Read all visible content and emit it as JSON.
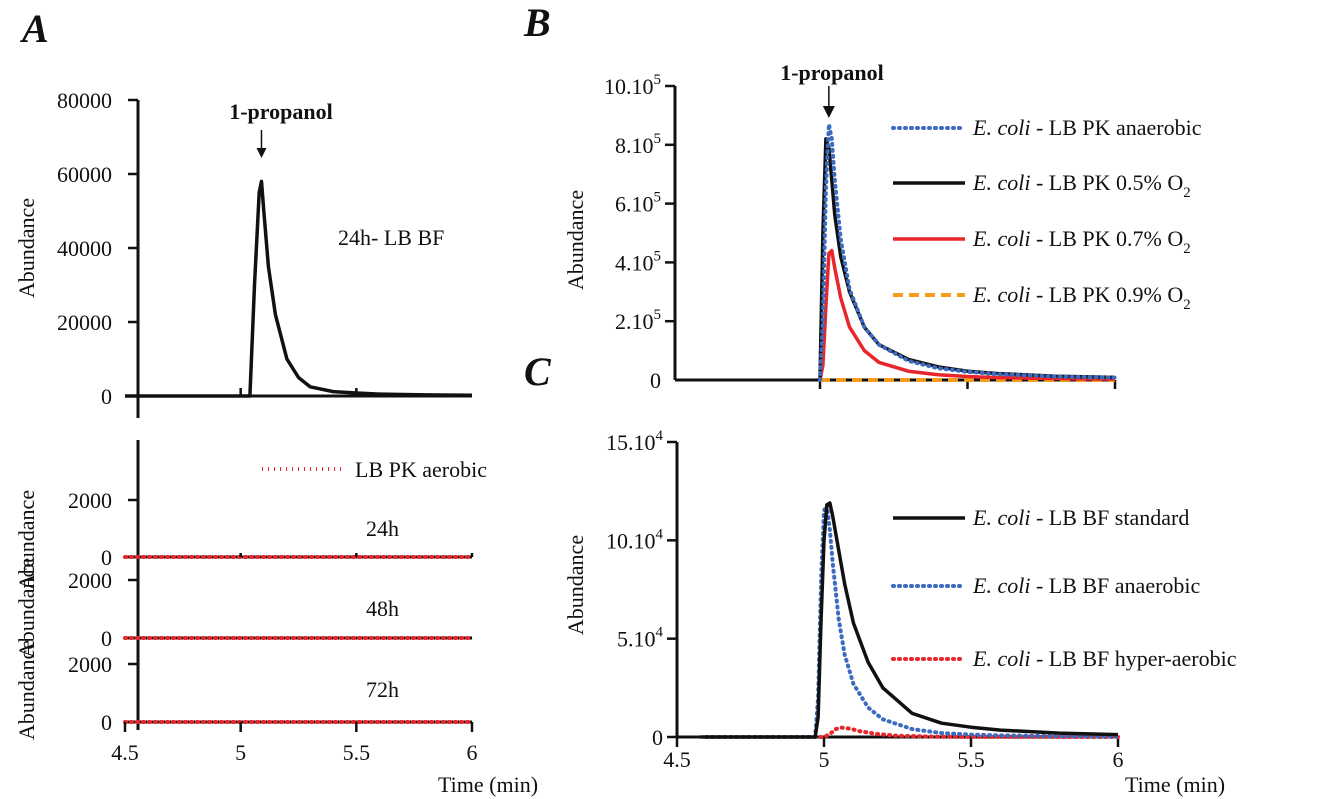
{
  "chart_data": [
    {
      "panel": "A",
      "type": "line",
      "ylabel": "Abundance",
      "xlim": [
        4.5,
        6.0
      ],
      "ylim": [
        0,
        80000
      ],
      "y_ticks": [
        "80000",
        "60000",
        "40000",
        "20000",
        "0"
      ],
      "y_tick_values": [
        80000,
        60000,
        40000,
        20000,
        0
      ],
      "annotation": {
        "text": "1-propanol",
        "x": 5.09
      },
      "label": "24h- LB  BF",
      "colors": {
        "line": "#111111"
      },
      "series": [
        {
          "style": "solid",
          "x": [
            4.5,
            5.0,
            5.04,
            5.06,
            5.08,
            5.09,
            5.1,
            5.12,
            5.15,
            5.2,
            5.25,
            5.3,
            5.4,
            5.5,
            5.6,
            5.8,
            6.0
          ],
          "y": [
            0,
            0,
            0,
            30000,
            55000,
            58000,
            50000,
            35000,
            22000,
            10000,
            5000,
            2500,
            1200,
            800,
            500,
            300,
            200
          ]
        }
      ]
    },
    {
      "panel": "A-lower",
      "type": "line",
      "ylabel": "Abundance",
      "xlabel": "Time (min)",
      "xlim": [
        4.5,
        6.0
      ],
      "x_ticks": [
        "4.5",
        "5",
        "5.5",
        "6"
      ],
      "x_tick_values": [
        4.5,
        5.0,
        5.5,
        6.0
      ],
      "legend": "LB  PK aerobic",
      "colors": {
        "line": "#e8262b",
        "axis": "#111111"
      },
      "strips": [
        {
          "label": "24h",
          "y_ticks": [
            "2000",
            "0"
          ],
          "y_tick_values": [
            2000,
            0
          ],
          "ylim": [
            0,
            3500
          ],
          "series": [
            {
              "x": [
                4.5,
                6.0
              ],
              "y": [
                0,
                0
              ]
            }
          ]
        },
        {
          "label": "48h",
          "y_ticks": [
            "2000",
            "0"
          ],
          "y_tick_values": [
            2000,
            0
          ],
          "ylim": [
            0,
            2300
          ],
          "series": [
            {
              "x": [
                4.5,
                6.0
              ],
              "y": [
                0,
                0
              ]
            }
          ]
        },
        {
          "label": "72h",
          "y_ticks": [
            "2000",
            "0"
          ],
          "y_tick_values": [
            2000,
            0
          ],
          "ylim": [
            0,
            2300
          ],
          "series": [
            {
              "x": [
                4.5,
                6.0
              ],
              "y": [
                0,
                0
              ]
            }
          ]
        }
      ]
    },
    {
      "panel": "B",
      "type": "line",
      "ylabel": "Abundance",
      "xlim": [
        5.0,
        6.0
      ],
      "ylim": [
        0,
        1000000
      ],
      "y_ticks": [
        {
          "m": "10.10",
          "e": "5",
          "v": 1000000
        },
        {
          "m": "8.10",
          "e": "5",
          "v": 800000
        },
        {
          "m": "6.10",
          "e": "5",
          "v": 600000
        },
        {
          "m": "4.10",
          "e": "5",
          "v": 400000
        },
        {
          "m": "2.10",
          "e": "5",
          "v": 200000
        },
        {
          "m": "0",
          "e": "",
          "v": 0
        }
      ],
      "x_tick_values": [
        5.0,
        5.5,
        6.0
      ],
      "annotation": {
        "text": "1-propanol",
        "x": 5.03
      },
      "series": [
        {
          "name_italic": "E. coli",
          "name_rest": " - LB  PK anaerobic",
          "sub": "",
          "color": "#3d6bbf",
          "style": "dotted",
          "x": [
            5.0,
            5.01,
            5.02,
            5.03,
            5.04,
            5.05,
            5.07,
            5.1,
            5.15,
            5.2,
            5.3,
            5.4,
            5.5,
            5.6,
            5.8,
            6.0
          ],
          "y": [
            0,
            200000,
            650000,
            870000,
            820000,
            680000,
            480000,
            310000,
            180000,
            120000,
            65000,
            40000,
            28000,
            20000,
            12000,
            8000
          ]
        },
        {
          "name_italic": "E. coli",
          "name_rest": " - LB  PK 0.5% O",
          "sub": "2",
          "color": "#111111",
          "style": "solid",
          "x": [
            5.0,
            5.01,
            5.02,
            5.03,
            5.04,
            5.05,
            5.07,
            5.1,
            5.15,
            5.2,
            5.3,
            5.4,
            5.5,
            5.6,
            5.8,
            6.0
          ],
          "y": [
            0,
            500000,
            820000,
            790000,
            680000,
            560000,
            420000,
            300000,
            180000,
            120000,
            70000,
            45000,
            30000,
            22000,
            13000,
            9000
          ]
        },
        {
          "name_italic": "E. coli",
          "name_rest": " - LB  PK 0.7% O",
          "sub": "2",
          "color": "#e8262b",
          "style": "solid",
          "x": [
            5.0,
            5.01,
            5.02,
            5.03,
            5.04,
            5.05,
            5.07,
            5.1,
            5.15,
            5.2,
            5.3,
            5.4,
            5.5,
            5.6,
            5.8,
            6.0
          ],
          "y": [
            0,
            50000,
            250000,
            430000,
            440000,
            380000,
            280000,
            180000,
            100000,
            60000,
            30000,
            18000,
            12000,
            8000,
            5000,
            3000
          ]
        },
        {
          "name_italic": "E. coli",
          "name_rest": " - LB  PK 0.9% O",
          "sub": "2",
          "color": "#f39c1d",
          "style": "dashed",
          "x": [
            5.0,
            6.0
          ],
          "y": [
            0,
            0
          ]
        }
      ]
    },
    {
      "panel": "C",
      "type": "line",
      "ylabel": "Abundance",
      "xlabel": "Time (min)",
      "xlim": [
        4.5,
        6.0
      ],
      "ylim": [
        0,
        150000
      ],
      "y_ticks": [
        {
          "m": "15.10",
          "e": "4",
          "v": 150000
        },
        {
          "m": "10.10",
          "e": "4",
          "v": 100000
        },
        {
          "m": "5.10",
          "e": "4",
          "v": 50000
        },
        {
          "m": "0",
          "e": "",
          "v": 0
        }
      ],
      "x_ticks": [
        "4.5",
        "5",
        "5.5",
        "6"
      ],
      "x_tick_values": [
        4.5,
        5.0,
        5.5,
        6.0
      ],
      "series": [
        {
          "name_italic": "E. coli",
          "name_rest": " - LB  BF standard",
          "color": "#111111",
          "style": "solid",
          "x": [
            4.58,
            4.97,
            4.98,
            4.99,
            5.0,
            5.01,
            5.02,
            5.03,
            5.05,
            5.07,
            5.1,
            5.15,
            5.2,
            5.3,
            5.4,
            5.5,
            5.6,
            5.8,
            6.0
          ],
          "y": [
            0,
            0,
            10000,
            60000,
            100000,
            118000,
            119000,
            112000,
            95000,
            78000,
            58000,
            38000,
            25000,
            12000,
            7000,
            5000,
            3500,
            2000,
            1200
          ]
        },
        {
          "name_italic": "E. coli",
          "name_rest": " - LB  BF  anaerobic",
          "color": "#3d6bbf",
          "style": "dotted",
          "x": [
            4.6,
            4.97,
            4.98,
            4.99,
            5.0,
            5.01,
            5.02,
            5.03,
            5.05,
            5.07,
            5.1,
            5.15,
            5.2,
            5.3,
            5.4,
            5.5,
            5.6,
            5.8,
            6.0
          ],
          "y": [
            0,
            0,
            20000,
            80000,
            115000,
            118000,
            105000,
            88000,
            60000,
            42000,
            27000,
            15000,
            9000,
            4000,
            2000,
            1200,
            800,
            400,
            200
          ]
        },
        {
          "name_italic": "E. coli",
          "name_rest": " - LB  BF  hyper-aerobic",
          "color": "#e8262b",
          "style": "dotted",
          "x": [
            4.6,
            5.0,
            5.02,
            5.04,
            5.06,
            5.09,
            5.12,
            5.18,
            5.25,
            5.4,
            6.0
          ],
          "y": [
            0,
            0,
            1500,
            4000,
            4800,
            4200,
            3000,
            1500,
            600,
            100,
            0
          ]
        }
      ]
    }
  ],
  "panel_labels": {
    "a": "A",
    "b": "B",
    "c": "C"
  }
}
